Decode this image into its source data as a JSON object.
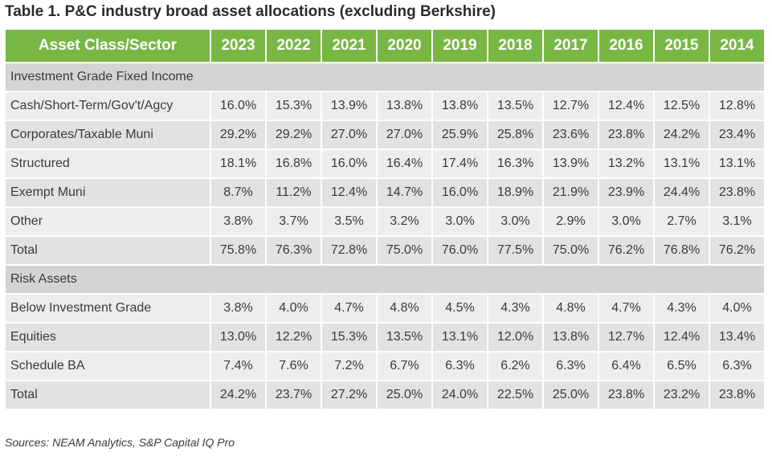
{
  "title": "Table 1. P&C industry broad asset allocations (excluding Berkshire)",
  "source": "Sources: NEAM Analytics, S&P Capital IQ Pro",
  "colors": {
    "header_bg": "#78b743",
    "header_text": "#ffffff",
    "row_light": "#ededed",
    "row_dark": "#e2e2e2",
    "section_bg": "#d4d4d4"
  },
  "chart_data": {
    "type": "table",
    "title": "Table 1. P&C industry broad asset allocations (excluding Berkshire)",
    "columns": [
      "Asset Class/Sector",
      "2023",
      "2022",
      "2021",
      "2020",
      "2019",
      "2018",
      "2017",
      "2016",
      "2015",
      "2014"
    ],
    "rows": [
      {
        "kind": "section",
        "label": "Investment Grade Fixed Income"
      },
      {
        "kind": "data",
        "label": "Cash/Short-Term/Gov't/Agcy",
        "values": [
          "16.0%",
          "15.3%",
          "13.9%",
          "13.8%",
          "13.8%",
          "13.5%",
          "12.7%",
          "12.4%",
          "12.5%",
          "12.8%"
        ]
      },
      {
        "kind": "data",
        "label": "Corporates/Taxable Muni",
        "values": [
          "29.2%",
          "29.2%",
          "27.0%",
          "27.0%",
          "25.9%",
          "25.8%",
          "23.6%",
          "23.8%",
          "24.2%",
          "23.4%"
        ]
      },
      {
        "kind": "data",
        "label": "Structured",
        "values": [
          "18.1%",
          "16.8%",
          "16.0%",
          "16.4%",
          "17.4%",
          "16.3%",
          "13.9%",
          "13.2%",
          "13.1%",
          "13.1%"
        ]
      },
      {
        "kind": "data",
        "label": "Exempt Muni",
        "values": [
          "8.7%",
          "11.2%",
          "12.4%",
          "14.7%",
          "16.0%",
          "18.9%",
          "21.9%",
          "23.9%",
          "24.4%",
          "23.8%"
        ]
      },
      {
        "kind": "data",
        "label": "Other",
        "values": [
          "3.8%",
          "3.7%",
          "3.5%",
          "3.2%",
          "3.0%",
          "3.0%",
          "2.9%",
          "3.0%",
          "2.7%",
          "3.1%"
        ]
      },
      {
        "kind": "data",
        "label": "Total",
        "values": [
          "75.8%",
          "76.3%",
          "72.8%",
          "75.0%",
          "76.0%",
          "77.5%",
          "75.0%",
          "76.2%",
          "76.8%",
          "76.2%"
        ]
      },
      {
        "kind": "section",
        "label": "Risk Assets"
      },
      {
        "kind": "data",
        "label": "Below Investment Grade",
        "values": [
          "3.8%",
          "4.0%",
          "4.7%",
          "4.8%",
          "4.5%",
          "4.3%",
          "4.8%",
          "4.7%",
          "4.3%",
          "4.0%"
        ]
      },
      {
        "kind": "data",
        "label": "Equities",
        "values": [
          "13.0%",
          "12.2%",
          "15.3%",
          "13.5%",
          "13.1%",
          "12.0%",
          "13.8%",
          "12.7%",
          "12.4%",
          "13.4%"
        ]
      },
      {
        "kind": "data",
        "label": "Schedule BA",
        "values": [
          "7.4%",
          "7.6%",
          "7.2%",
          "6.7%",
          "6.3%",
          "6.2%",
          "6.3%",
          "6.4%",
          "6.5%",
          "6.3%"
        ]
      },
      {
        "kind": "data",
        "label": "Total",
        "values": [
          "24.2%",
          "23.7%",
          "27.2%",
          "25.0%",
          "24.0%",
          "22.5%",
          "25.0%",
          "23.8%",
          "23.2%",
          "23.8%"
        ]
      }
    ]
  }
}
